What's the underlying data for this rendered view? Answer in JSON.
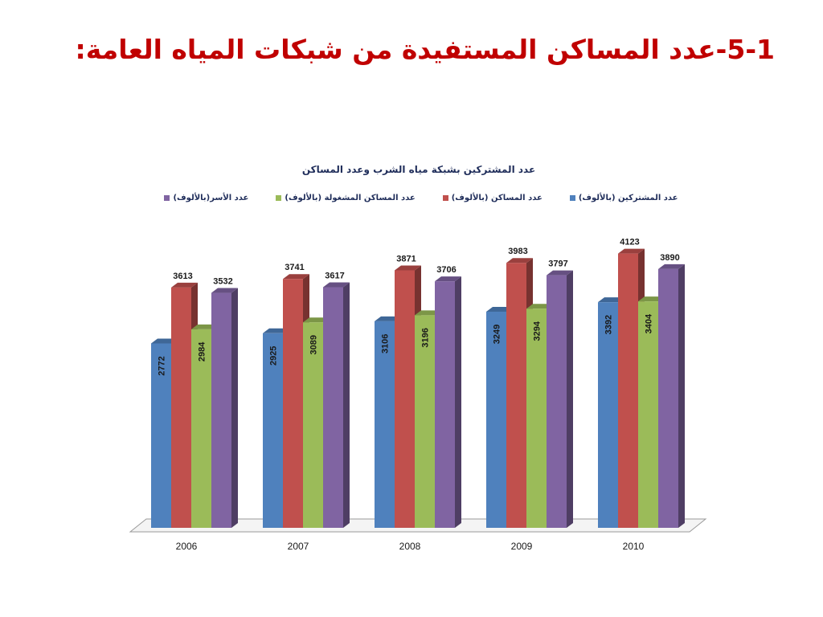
{
  "slide": {
    "title": "5-1-عدد المساكن المستفيدة من شبكات المياه العامة:"
  },
  "chart_data": {
    "type": "bar",
    "title": "عدد المشتركين بشبكة مياه الشرب وعدد المساكن",
    "xlabel": "",
    "ylabel": "",
    "ylim": [
      0,
      4500
    ],
    "grid": false,
    "legend_position": "top",
    "categories": [
      "2006",
      "2007",
      "2008",
      "2009",
      "2010"
    ],
    "series": [
      {
        "name": "عدد المشتركين (بالألوف)",
        "color": "#4f81bd",
        "values": [
          2772,
          2925,
          3106,
          3249,
          3392
        ]
      },
      {
        "name": "عدد المساكن (بالألوف)",
        "color": "#c0504d",
        "values": [
          3613,
          3741,
          3871,
          3983,
          4123
        ]
      },
      {
        "name": "عدد المساكن المشغولة (بالألوف)",
        "color": "#9bbb59",
        "values": [
          2984,
          3089,
          3196,
          3294,
          3404
        ]
      },
      {
        "name": "عدد الأسر(بالألوف)",
        "color": "#8064a2",
        "values": [
          3532,
          3617,
          3706,
          3797,
          3890
        ]
      }
    ]
  }
}
